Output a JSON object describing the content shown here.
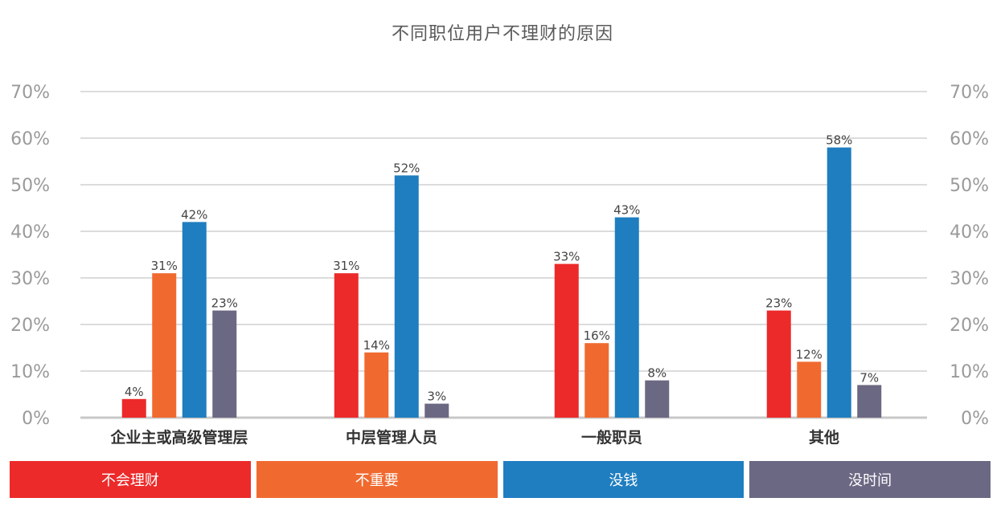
{
  "chart_data": {
    "type": "bar",
    "title": "不同职位用户不理财的原因",
    "categories": [
      "企业主或高级管理层",
      "中层管理人员",
      "一般职员",
      "其他"
    ],
    "series": [
      {
        "name": "不会理财",
        "color": "#ec2a2a",
        "values": [
          4,
          31,
          33,
          23
        ]
      },
      {
        "name": "不重要",
        "color": "#f06a30",
        "values": [
          31,
          14,
          16,
          12
        ]
      },
      {
        "name": "没钱",
        "color": "#1f7ec0",
        "values": [
          42,
          52,
          43,
          58
        ]
      },
      {
        "name": "没时间",
        "color": "#6b6883",
        "values": [
          23,
          3,
          8,
          7
        ]
      }
    ],
    "yticks": [
      "0%",
      "10%",
      "20%",
      "30%",
      "40%",
      "50%",
      "60%",
      "70%"
    ],
    "ylim": [
      0,
      70
    ],
    "ylabel": "",
    "xlabel": "",
    "grid": true,
    "legend_position": "bottom",
    "data_label_suffix": "%"
  }
}
